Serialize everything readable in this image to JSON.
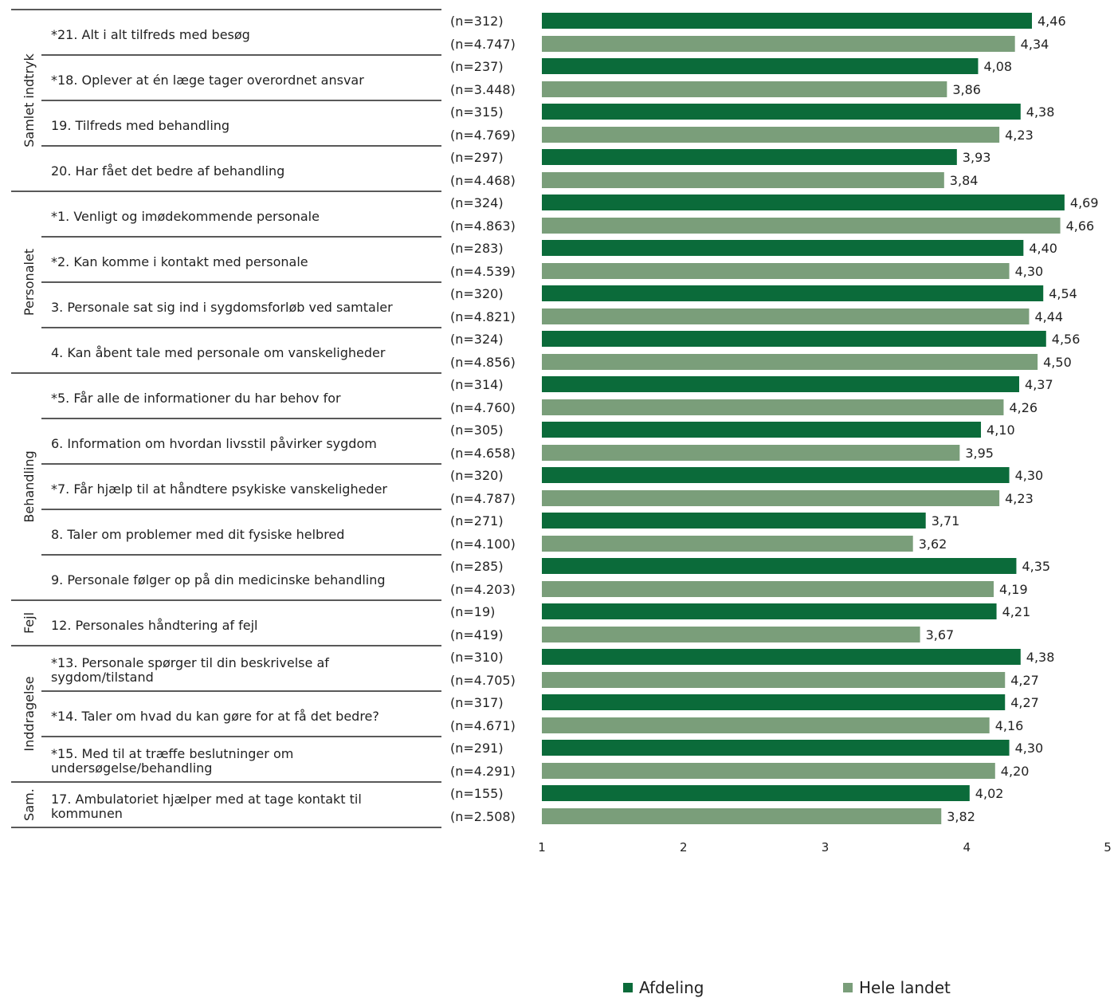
{
  "chart_data": {
    "type": "bar",
    "orientation": "horizontal",
    "xlim": [
      1,
      5
    ],
    "x_ticks": [
      "1",
      "2",
      "3",
      "4",
      "5"
    ],
    "colors": {
      "Afdeling": "#0b6b3a",
      "Hele landet": "#7a9e7a"
    },
    "legend": [
      {
        "name": "Afdeling",
        "color": "#0b6b3a"
      },
      {
        "name": "Hele landet",
        "color": "#7a9e7a"
      }
    ],
    "legend_position": "bottom",
    "groups": [
      {
        "label": "Samlet indtryk",
        "start": 0,
        "end": 3
      },
      {
        "label": "Personalet",
        "start": 4,
        "end": 7
      },
      {
        "label": "Behandling",
        "start": 8,
        "end": 12
      },
      {
        "label": "Fejl",
        "start": 13,
        "end": 13
      },
      {
        "label": "Inddragelse",
        "start": 14,
        "end": 16
      },
      {
        "label": "Sam.",
        "start": 17,
        "end": 17
      }
    ],
    "items": [
      {
        "question": [
          "*21. Alt i alt tilfreds med besøg"
        ],
        "afdeling": {
          "n": "(n=312)",
          "value": 4.46,
          "label": "4,46"
        },
        "landet": {
          "n": "(n=4.747)",
          "value": 4.34,
          "label": "4,34"
        }
      },
      {
        "question": [
          "*18. Oplever at én læge tager overordnet ansvar"
        ],
        "afdeling": {
          "n": "(n=237)",
          "value": 4.08,
          "label": "4,08"
        },
        "landet": {
          "n": "(n=3.448)",
          "value": 3.86,
          "label": "3,86"
        }
      },
      {
        "question": [
          "19. Tilfreds med behandling"
        ],
        "afdeling": {
          "n": "(n=315)",
          "value": 4.38,
          "label": "4,38"
        },
        "landet": {
          "n": "(n=4.769)",
          "value": 4.23,
          "label": "4,23"
        }
      },
      {
        "question": [
          "20. Har fået det bedre af behandling"
        ],
        "afdeling": {
          "n": "(n=297)",
          "value": 3.93,
          "label": "3,93"
        },
        "landet": {
          "n": "(n=4.468)",
          "value": 3.84,
          "label": "3,84"
        }
      },
      {
        "question": [
          "*1. Venligt og imødekommende personale"
        ],
        "afdeling": {
          "n": "(n=324)",
          "value": 4.69,
          "label": "4,69"
        },
        "landet": {
          "n": "(n=4.863)",
          "value": 4.66,
          "label": "4,66"
        }
      },
      {
        "question": [
          "*2. Kan komme i kontakt med personale"
        ],
        "afdeling": {
          "n": "(n=283)",
          "value": 4.4,
          "label": "4,40"
        },
        "landet": {
          "n": "(n=4.539)",
          "value": 4.3,
          "label": "4,30"
        }
      },
      {
        "question": [
          "3. Personale sat sig ind i sygdomsforløb ved samtaler"
        ],
        "afdeling": {
          "n": "(n=320)",
          "value": 4.54,
          "label": "4,54"
        },
        "landet": {
          "n": "(n=4.821)",
          "value": 4.44,
          "label": "4,44"
        }
      },
      {
        "question": [
          "4. Kan åbent tale med personale om vanskeligheder"
        ],
        "afdeling": {
          "n": "(n=324)",
          "value": 4.56,
          "label": "4,56"
        },
        "landet": {
          "n": "(n=4.856)",
          "value": 4.5,
          "label": "4,50"
        }
      },
      {
        "question": [
          "*5. Får alle de informationer du har behov for"
        ],
        "afdeling": {
          "n": "(n=314)",
          "value": 4.37,
          "label": "4,37"
        },
        "landet": {
          "n": "(n=4.760)",
          "value": 4.26,
          "label": "4,26"
        }
      },
      {
        "question": [
          "6. Information om hvordan livsstil påvirker sygdom"
        ],
        "afdeling": {
          "n": "(n=305)",
          "value": 4.1,
          "label": "4,10"
        },
        "landet": {
          "n": "(n=4.658)",
          "value": 3.95,
          "label": "3,95"
        }
      },
      {
        "question": [
          "*7. Får hjælp til at håndtere psykiske vanskeligheder"
        ],
        "afdeling": {
          "n": "(n=320)",
          "value": 4.3,
          "label": "4,30"
        },
        "landet": {
          "n": "(n=4.787)",
          "value": 4.23,
          "label": "4,23"
        }
      },
      {
        "question": [
          "8. Taler om problemer med dit fysiske helbred"
        ],
        "afdeling": {
          "n": "(n=271)",
          "value": 3.71,
          "label": "3,71"
        },
        "landet": {
          "n": "(n=4.100)",
          "value": 3.62,
          "label": "3,62"
        }
      },
      {
        "question": [
          "9. Personale følger op på din medicinske behandling"
        ],
        "afdeling": {
          "n": "(n=285)",
          "value": 4.35,
          "label": "4,35"
        },
        "landet": {
          "n": "(n=4.203)",
          "value": 4.19,
          "label": "4,19"
        }
      },
      {
        "question": [
          "12. Personales håndtering af fejl"
        ],
        "afdeling": {
          "n": "(n=19)",
          "value": 4.21,
          "label": "4,21"
        },
        "landet": {
          "n": "(n=419)",
          "value": 3.67,
          "label": "3,67"
        }
      },
      {
        "question": [
          "*13. Personale spørger til din beskrivelse af",
          "sygdom/tilstand"
        ],
        "afdeling": {
          "n": "(n=310)",
          "value": 4.38,
          "label": "4,38"
        },
        "landet": {
          "n": "(n=4.705)",
          "value": 4.27,
          "label": "4,27"
        }
      },
      {
        "question": [
          "*14. Taler om hvad du kan gøre for at få det bedre?"
        ],
        "afdeling": {
          "n": "(n=317)",
          "value": 4.27,
          "label": "4,27"
        },
        "landet": {
          "n": "(n=4.671)",
          "value": 4.16,
          "label": "4,16"
        }
      },
      {
        "question": [
          "*15. Med til at træffe beslutninger om",
          "undersøgelse/behandling"
        ],
        "afdeling": {
          "n": "(n=291)",
          "value": 4.3,
          "label": "4,30"
        },
        "landet": {
          "n": "(n=4.291)",
          "value": 4.2,
          "label": "4,20"
        }
      },
      {
        "question": [
          "17. Ambulatoriet hjælper med at tage kontakt til",
          "kommunen"
        ],
        "afdeling": {
          "n": "(n=155)",
          "value": 4.02,
          "label": "4,02"
        },
        "landet": {
          "n": "(n=2.508)",
          "value": 3.82,
          "label": "3,82"
        }
      }
    ]
  }
}
